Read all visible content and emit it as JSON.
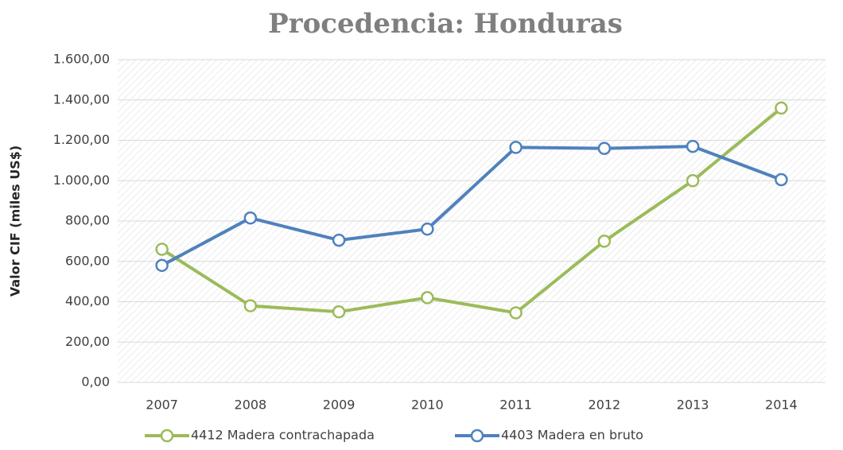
{
  "chart_data": {
    "type": "line",
    "title": "Procedencia: Honduras",
    "y_label": "Valor CIF (miles US$)",
    "categories": [
      "2007",
      "2008",
      "2009",
      "2010",
      "2011",
      "2012",
      "2013",
      "2014"
    ],
    "series": [
      {
        "name": "4412 Madera contrachapada",
        "color": "#9bbb59",
        "values": [
          660,
          380,
          350,
          420,
          345,
          700,
          1000,
          1360
        ]
      },
      {
        "name": "4403 Madera en bruto",
        "color": "#4f81bd",
        "values": [
          580,
          815,
          705,
          760,
          1165,
          1160,
          1170,
          1005
        ]
      }
    ],
    "ylim": [
      0,
      1600
    ],
    "yticks": [
      {
        "value": 0,
        "label": "0,00"
      },
      {
        "value": 200,
        "label": "200,00"
      },
      {
        "value": 400,
        "label": "400,00"
      },
      {
        "value": 600,
        "label": "600,00"
      },
      {
        "value": 800,
        "label": "800,00"
      },
      {
        "value": 1000,
        "label": "1.000,00"
      },
      {
        "value": 1200,
        "label": "1.200,00"
      },
      {
        "value": 1400,
        "label": "1.400,00"
      },
      {
        "value": 1600,
        "label": "1.600,00"
      }
    ],
    "grid": true,
    "legend": "bottom"
  }
}
